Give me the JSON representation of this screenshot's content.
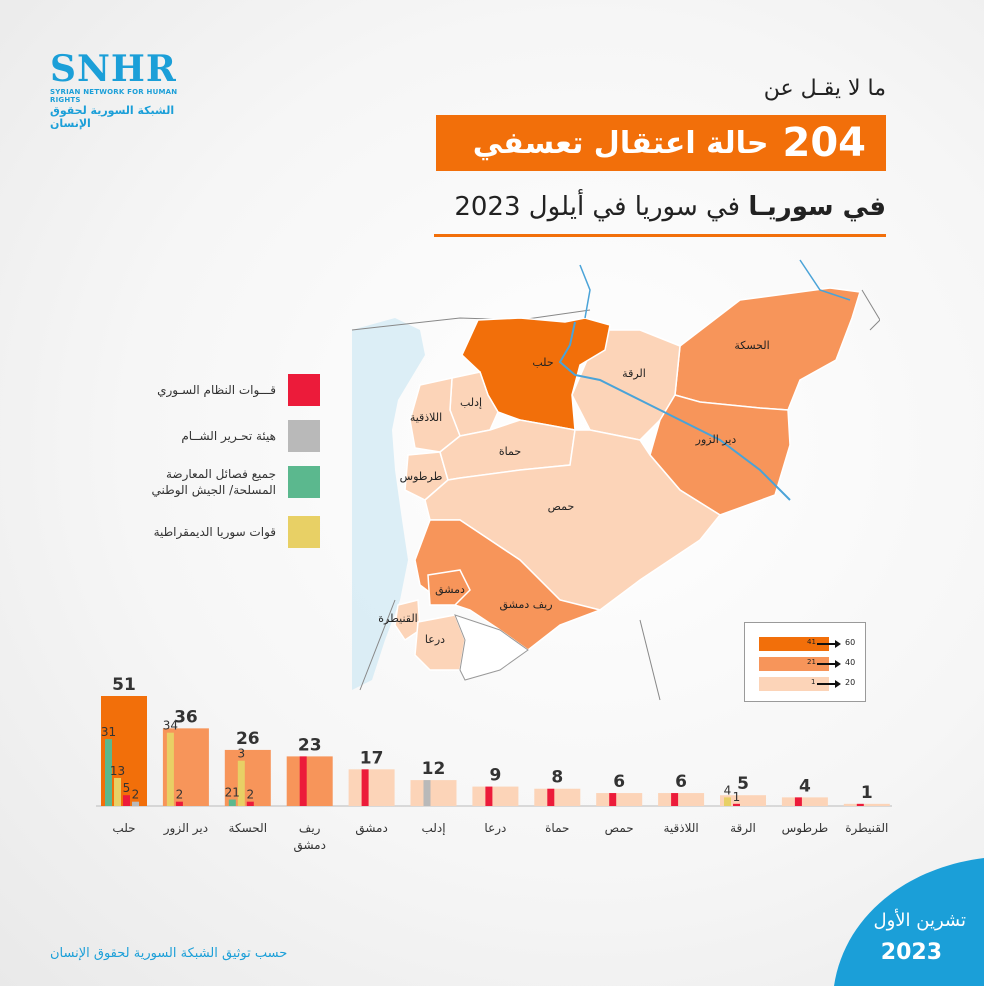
{
  "logo": {
    "name": "SNHR",
    "en": "SYRIAN NETWORK FOR HUMAN RIGHTS",
    "ar": "الشبكة السورية لحقوق الإنسان"
  },
  "header": {
    "line1": "ما لا يقـل عن",
    "count": "204",
    "banner_text": "حالة اعتقال تعسفي",
    "line3_bold": "في سوريـا",
    "line3_rest": "في سوريا في أيلول 2023"
  },
  "colors": {
    "regime": "#ec1b3a",
    "hts": "#b9b9b9",
    "sna": "#5bb88e",
    "sdf": "#e8d065",
    "high": "#f26f0a",
    "mid": "#f7955a",
    "low": "#fcd4b8",
    "accent": "#1b9fd8"
  },
  "legend": [
    {
      "label": "قـــوات النظام السـوري",
      "color": "#ec1b3a"
    },
    {
      "label": "هيئة تحـرير الشــام",
      "color": "#b9b9b9"
    },
    {
      "label": "جميع فصائل المعارضة المسلحة/ الجيش الوطني",
      "color": "#5bb88e"
    },
    {
      "label": "قوات سوريا الديمقراطية",
      "color": "#e8d065"
    }
  ],
  "scale": [
    {
      "from": "41",
      "to": "60",
      "color": "#f26f0a"
    },
    {
      "from": "21",
      "to": "40",
      "color": "#f7955a"
    },
    {
      "from": "1",
      "to": "20",
      "color": "#fcd4b8"
    }
  ],
  "map_labels": {
    "aleppo": "حلب",
    "raqqa": "الرقة",
    "hasakah": "الحسكة",
    "deir": "دير الزور",
    "idlib": "إدلب",
    "latakia": "اللاذقية",
    "hama": "حماة",
    "tartus": "طرطوس",
    "homs": "حمص",
    "damascus": "دمشق",
    "rif": "ريف دمشق",
    "quneitra": "القنيطرة",
    "daraa": "درعا"
  },
  "chart_data": {
    "type": "bar",
    "categories": [
      "حلب",
      "دير الزور",
      "الحسكة",
      "ريف دمشق",
      "دمشق",
      "إدلب",
      "درعا",
      "حماة",
      "حمص",
      "اللاذقية",
      "الرقة",
      "طرطوس",
      "القنيطرة"
    ],
    "totals": [
      51,
      36,
      26,
      23,
      17,
      12,
      9,
      8,
      6,
      6,
      5,
      4,
      1
    ],
    "series": [
      {
        "name": "قـــوات النظام السـوري",
        "values": [
          5,
          2,
          2,
          23,
          17,
          0,
          9,
          8,
          6,
          6,
          1,
          4,
          1
        ]
      },
      {
        "name": "هيئة تحـرير الشــام",
        "values": [
          0,
          0,
          0,
          0,
          0,
          12,
          0,
          0,
          0,
          0,
          0,
          0,
          0
        ]
      },
      {
        "name": "جميع فصائل المعارضة المسلحة/ الجيش الوطني",
        "values": [
          31,
          0,
          3,
          0,
          0,
          0,
          0,
          0,
          0,
          0,
          0,
          0,
          0
        ]
      },
      {
        "name": "قوات سوريا الديمقراطية",
        "values": [
          13,
          34,
          21,
          0,
          0,
          0,
          0,
          0,
          0,
          0,
          4,
          0,
          0
        ]
      }
    ],
    "inner_labels": [
      [
        "31",
        "13",
        "5",
        "2"
      ],
      [
        "34",
        "2"
      ],
      [
        "21",
        "3",
        "2"
      ],
      [],
      [],
      [],
      [],
      [],
      [],
      [],
      [
        "4",
        "1"
      ],
      [],
      []
    ],
    "unlabeled_extra": [
      2,
      0,
      0,
      0,
      0,
      0,
      0,
      0,
      0,
      0,
      0,
      0,
      0
    ],
    "ylim": [
      0,
      51
    ]
  },
  "footer": {
    "source": "حسب توثيق الشبكة السورية لحقوق الإنسان",
    "month": "تشرين الأول",
    "year": "2023"
  }
}
